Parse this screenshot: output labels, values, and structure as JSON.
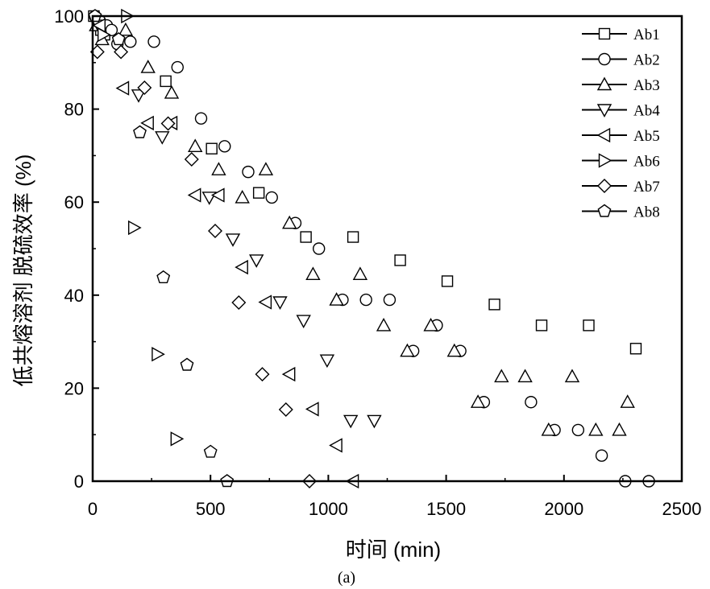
{
  "chart_data": {
    "type": "scatter",
    "xlabel": "时间 (min)",
    "ylabel": "低共熔溶剂 脱硫效率 (%)",
    "caption": "(a)",
    "xlim": [
      0,
      2500
    ],
    "ylim": [
      0,
      100
    ],
    "xticks": [
      "0",
      "500",
      "1000",
      "1500",
      "2000",
      "2500"
    ],
    "yticks": [
      "0",
      "20",
      "40",
      "60",
      "80",
      "100"
    ],
    "legend_position": "top-right",
    "series": [
      {
        "name": "Ab1",
        "marker": "square",
        "x": [
          5,
          20,
          35,
          50,
          310,
          505,
          705,
          905,
          1105,
          1305,
          1505,
          1705,
          1905,
          2105,
          2305
        ],
        "y": [
          100,
          98,
          97,
          96,
          86,
          71.5,
          62,
          52.5,
          52.5,
          47.5,
          43,
          38,
          33.5,
          33.5,
          28.5
        ]
      },
      {
        "name": "Ab2",
        "marker": "circle",
        "x": [
          10,
          30,
          60,
          80,
          105,
          160,
          260,
          360,
          460,
          560,
          660,
          760,
          860,
          960,
          1060,
          1160,
          1260,
          1360,
          1460,
          1560,
          1660,
          1860,
          1960,
          2060,
          2160,
          2260,
          2360
        ],
        "y": [
          100,
          99,
          98,
          97,
          94,
          94.5,
          94.5,
          89,
          78,
          72,
          66.5,
          61,
          55.5,
          50,
          39,
          39,
          39,
          28,
          33.5,
          28,
          17,
          17,
          11,
          11,
          5.5,
          0,
          0
        ]
      },
      {
        "name": "Ab3",
        "marker": "triangle-up",
        "x": [
          15,
          40,
          140,
          235,
          335,
          435,
          535,
          635,
          735,
          835,
          935,
          1035,
          1135,
          1235,
          1335,
          1435,
          1535,
          1635,
          1735,
          1835,
          1935,
          2035,
          2135,
          2235,
          2270
        ],
        "y": [
          98,
          95,
          97,
          89,
          83.5,
          72,
          67,
          61,
          67,
          55.5,
          44.5,
          39,
          44.5,
          33.5,
          28,
          33.5,
          28,
          17,
          22.5,
          22.5,
          11,
          22.5,
          11,
          11,
          17
        ]
      },
      {
        "name": "Ab4",
        "marker": "triangle-down",
        "x": [
          25,
          195,
          295,
          495,
          595,
          695,
          795,
          895,
          995,
          1095,
          1195
        ],
        "y": [
          98,
          83,
          74,
          61,
          52,
          47.5,
          38.5,
          34.5,
          26,
          13,
          13
        ]
      },
      {
        "name": "Ab5",
        "marker": "triangle-left",
        "x": [
          30,
          130,
          235,
          335,
          435,
          535,
          635,
          735,
          835,
          935,
          1035,
          1105
        ],
        "y": [
          98,
          84.5,
          77,
          77,
          61.5,
          61.5,
          46,
          38.5,
          23,
          15.5,
          7.7,
          0
        ]
      },
      {
        "name": "Ab6",
        "marker": "triangle-right",
        "x": [
          45,
          145,
          175,
          275,
          355
        ],
        "y": [
          96,
          100,
          54.5,
          27.3,
          9.1
        ]
      },
      {
        "name": "Ab7",
        "marker": "diamond",
        "x": [
          20,
          120,
          220,
          320,
          420,
          520,
          620,
          720,
          820,
          920
        ],
        "y": [
          92.3,
          92.3,
          84.6,
          76.9,
          69.2,
          53.8,
          38.4,
          23,
          15.4,
          0
        ]
      },
      {
        "name": "Ab8",
        "marker": "pentagon",
        "x": [
          10,
          110,
          200,
          300,
          400,
          500,
          570
        ],
        "y": [
          100,
          95,
          75,
          43.8,
          25,
          6.3,
          0
        ]
      }
    ]
  }
}
